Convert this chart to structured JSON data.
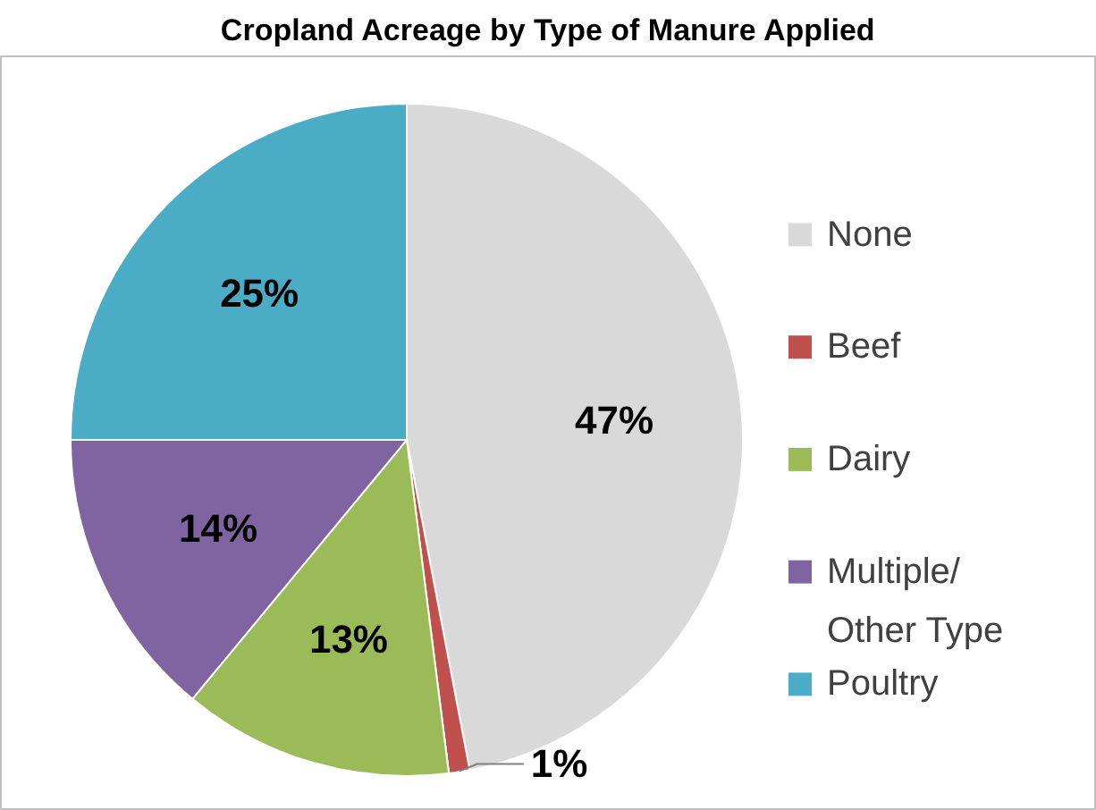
{
  "chart_data": {
    "type": "pie",
    "title": "Cropland Acreage by Type of Manure Applied",
    "categories": [
      "None",
      "Beef",
      "Dairy",
      "Multiple/ Other Type",
      "Poultry"
    ],
    "values": [
      47,
      1,
      13,
      14,
      25
    ],
    "colors": [
      "#d9d9d9",
      "#c0504d",
      "#9bbb59",
      "#8064a2",
      "#4bacc6"
    ],
    "value_labels": [
      "47%",
      "1%",
      "13%",
      "14%",
      "25%"
    ],
    "legend": "right"
  }
}
